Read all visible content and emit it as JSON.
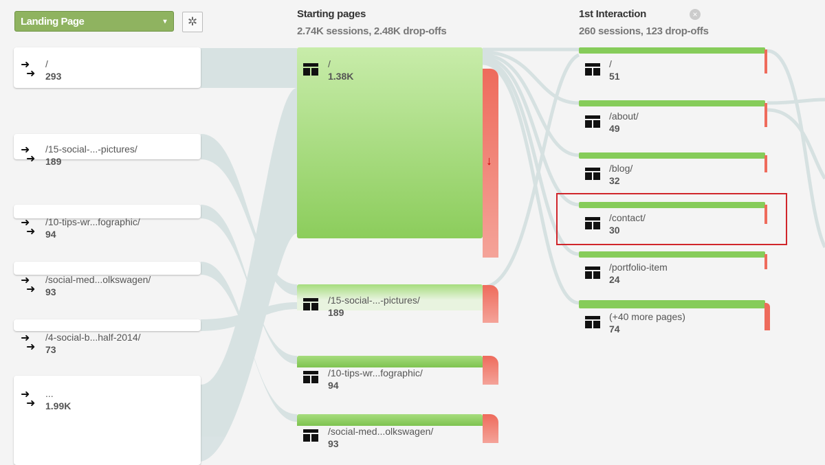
{
  "toolbar": {
    "dimension_label": "Landing Page",
    "caret": "▾",
    "gear": "✲"
  },
  "columns": [
    {
      "title": "Starting pages",
      "summary": "2.74K sessions, 2.48K drop-offs"
    },
    {
      "title": "1st Interaction",
      "summary": "260 sessions, 123 drop-offs",
      "close": "×"
    }
  ],
  "landing": [
    {
      "label": "/",
      "value": "293"
    },
    {
      "label": "/15-social-...-pictures/",
      "value": "189"
    },
    {
      "label": "/10-tips-wr...fographic/",
      "value": "94"
    },
    {
      "label": "/social-med...olkswagen/",
      "value": "93"
    },
    {
      "label": "/4-social-b...half-2014/",
      "value": "73"
    },
    {
      "label": "...",
      "value": "1.99K"
    }
  ],
  "starting": [
    {
      "label": "/",
      "value": "1.38K"
    },
    {
      "label": "/15-social-...-pictures/",
      "value": "189"
    },
    {
      "label": "/10-tips-wr...fographic/",
      "value": "94"
    },
    {
      "label": "/social-med...olkswagen/",
      "value": "93"
    }
  ],
  "interaction": [
    {
      "label": "/",
      "value": "51"
    },
    {
      "label": "/about/",
      "value": "49"
    },
    {
      "label": "/blog/",
      "value": "32"
    },
    {
      "label": "/contact/",
      "value": "30",
      "highlighted": true
    },
    {
      "label": "/portfolio-item",
      "value": "24"
    },
    {
      "label": "(+40 more pages)",
      "value": "74"
    }
  ],
  "colors": {
    "accent_green": "#8fb360",
    "node_green": "#86cc5a",
    "dropoff_red": "#ee6b5c",
    "flow": "#d3dfe0",
    "highlight": "#d0252a"
  },
  "icons": {
    "landing": "entrance-arrows-icon",
    "page": "page-layout-icon",
    "dropoff": "down-arrow-icon"
  }
}
